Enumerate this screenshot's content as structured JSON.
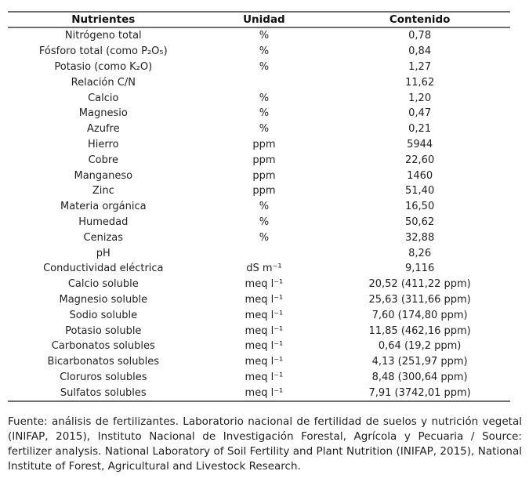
{
  "table": {
    "headers": {
      "nutrient": "Nutrientes",
      "unit": "Unidad",
      "content": "Contenido"
    },
    "rows": [
      {
        "nutrient": "Nitrógeno total",
        "unit": "%",
        "content": "0,78"
      },
      {
        "nutrient": "Fósforo total (como P₂O₅)",
        "unit": "%",
        "content": "0,84"
      },
      {
        "nutrient": "Potasio (como K₂O)",
        "unit": "%",
        "content": "1,27"
      },
      {
        "nutrient": "Relación C/N",
        "unit": "",
        "content": "11,62"
      },
      {
        "nutrient": "Calcio",
        "unit": "%",
        "content": "1,20"
      },
      {
        "nutrient": "Magnesio",
        "unit": "%",
        "content": "0,47"
      },
      {
        "nutrient": "Azufre",
        "unit": "%",
        "content": "0,21"
      },
      {
        "nutrient": "Hierro",
        "unit": "ppm",
        "content": "5944"
      },
      {
        "nutrient": "Cobre",
        "unit": "ppm",
        "content": "22,60"
      },
      {
        "nutrient": "Manganeso",
        "unit": "ppm",
        "content": "1460"
      },
      {
        "nutrient": "Zinc",
        "unit": "ppm",
        "content": "51,40"
      },
      {
        "nutrient": "Materia orgánica",
        "unit": "%",
        "content": "16,50"
      },
      {
        "nutrient": "Humedad",
        "unit": "%",
        "content": "50,62"
      },
      {
        "nutrient": "Cenizas",
        "unit": "%",
        "content": "32,88"
      },
      {
        "nutrient": "pH",
        "unit": "",
        "content": "8,26"
      },
      {
        "nutrient": "Conductividad eléctrica",
        "unit": "dS m⁻¹",
        "content": "9,116"
      },
      {
        "nutrient": "Calcio soluble",
        "unit": "meq l⁻¹",
        "content": "20,52 (411,22 ppm)"
      },
      {
        "nutrient": "Magnesio soluble",
        "unit": "meq l⁻¹",
        "content": "25,63 (311,66 ppm)"
      },
      {
        "nutrient": "Sodio soluble",
        "unit": "meq l⁻¹",
        "content": "7,60 (174,80 ppm)"
      },
      {
        "nutrient": "Potasio soluble",
        "unit": "meq l⁻¹",
        "content": "11,85 (462,16 ppm)"
      },
      {
        "nutrient": "Carbonatos solubles",
        "unit": "meq l⁻¹",
        "content": "0,64 (19,2 ppm)"
      },
      {
        "nutrient": "Bicarbonatos solubles",
        "unit": "meq l⁻¹",
        "content": "4,13 (251,97 ppm)"
      },
      {
        "nutrient": "Cloruros solubles",
        "unit": "meq l⁻¹",
        "content": "8,48 (300,64 ppm)"
      },
      {
        "nutrient": "Sulfatos solubles",
        "unit": "meq l⁻¹",
        "content": "7,91 (3742,01 ppm)"
      }
    ]
  },
  "footer": {
    "text": "Fuente: análisis de fertilizantes. Laboratorio nacional de fertilidad de suelos y nutrición vegetal (INIFAP, 2015), Instituto Nacional de Investigación Forestal, Agrícola y Pecuaria / Source: fertilizer analysis. National Laboratory of Soil Fertility and Plant Nutrition (INIFAP, 2015), National Institute of Forest, Agricultural and Livestock Research."
  },
  "colors": {
    "background": "#ffffff",
    "text": "#1f1f1f",
    "rule": "#6e6e6e"
  }
}
